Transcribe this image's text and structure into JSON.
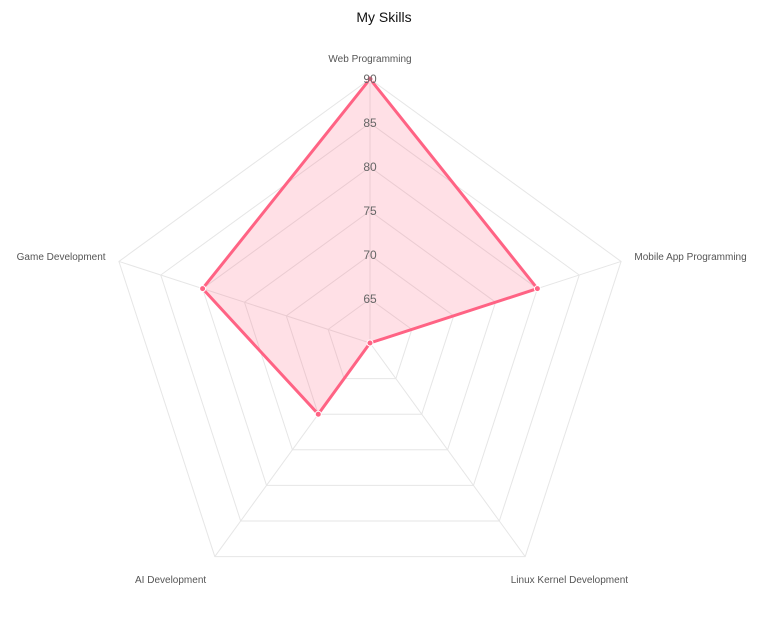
{
  "chart_data": {
    "type": "radar",
    "title": "My Skills",
    "categories": [
      "Web Programming",
      "Mobile App Programming",
      "Linux Kernel Development",
      "AI Development",
      "Game Development"
    ],
    "series": [
      {
        "values": [
          90,
          80,
          60,
          70,
          80
        ],
        "color": "#ff6384",
        "fill": "rgba(255,99,132,0.2)"
      }
    ],
    "r_range": [
      60,
      90
    ],
    "ticks": [
      65,
      70,
      75,
      80,
      85,
      90
    ],
    "grid": true,
    "legend": false,
    "grid_color": "#e6e6e6"
  }
}
